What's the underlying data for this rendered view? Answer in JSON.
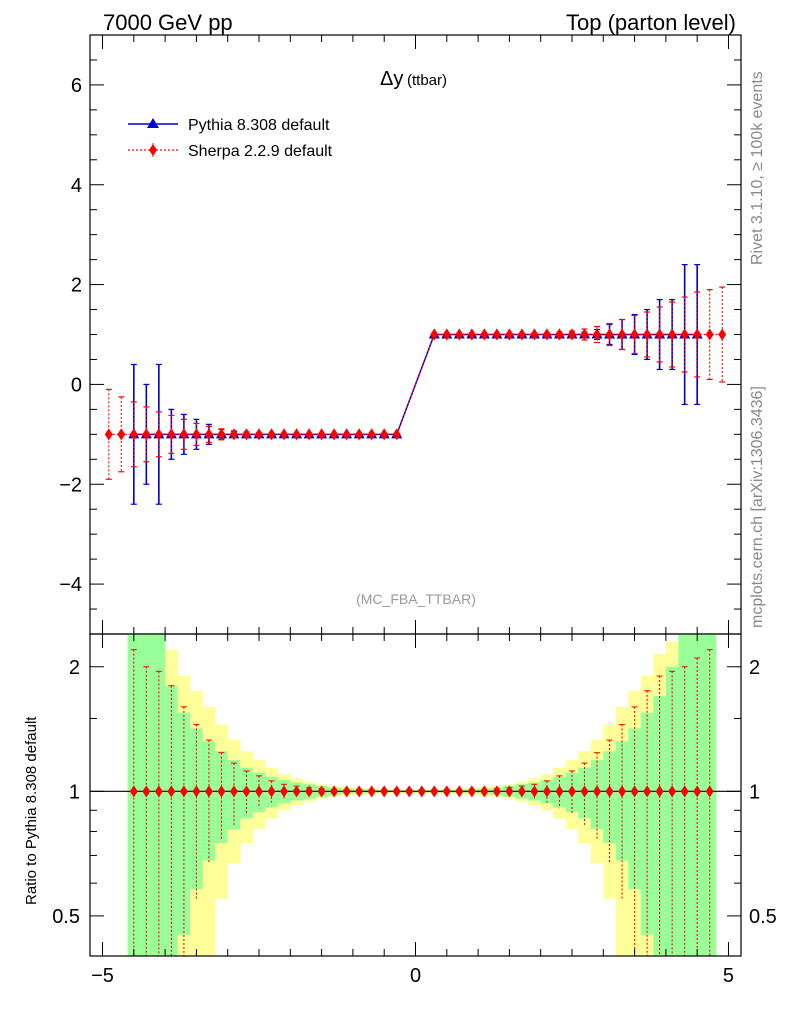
{
  "header": {
    "energy_label": "7000 GeV pp",
    "process_label": "Top (parton level)"
  },
  "side_text": {
    "rivet_version": "Rivet 3.1.10, ≥ 100k events",
    "site_ref": "mcplots.cern.ch [arXiv:1306.3436]"
  },
  "chart_data": [
    {
      "type": "line",
      "title": "Δy",
      "title_suffix": "(ttbar)",
      "watermark": "(MC_FBA_TTBAR)",
      "xlim": [
        -5.2,
        5.2
      ],
      "ylim": [
        -5.0,
        7.0
      ],
      "xticks": [
        -5,
        0,
        5
      ],
      "yticks": [
        -4,
        -2,
        0,
        2,
        4,
        6
      ],
      "legend_position": "top-left",
      "x": [
        -4.9,
        -4.7,
        -4.5,
        -4.3,
        -4.1,
        -3.9,
        -3.7,
        -3.5,
        -3.3,
        -3.1,
        -2.9,
        -2.7,
        -2.5,
        -2.3,
        -2.1,
        -1.9,
        -1.7,
        -1.5,
        -1.3,
        -1.1,
        -0.9,
        -0.7,
        -0.5,
        -0.3,
        0.3,
        0.5,
        0.7,
        0.9,
        1.1,
        1.3,
        1.5,
        1.7,
        1.9,
        2.1,
        2.3,
        2.5,
        2.7,
        2.9,
        3.1,
        3.3,
        3.5,
        3.7,
        3.9,
        4.1,
        4.3,
        4.5,
        4.7,
        4.9
      ],
      "series": [
        {
          "name": "Pythia 8.308 default",
          "color": "#0000cc",
          "line_style": "solid",
          "marker": "triangle",
          "x": [
            -4.5,
            -4.3,
            -4.1,
            -3.9,
            -3.7,
            -3.5,
            -3.3,
            -3.1,
            -2.9,
            -2.7,
            -2.5,
            -2.3,
            -2.1,
            -1.9,
            -1.7,
            -1.5,
            -1.3,
            -1.1,
            -0.9,
            -0.7,
            -0.5,
            -0.3,
            0.3,
            0.5,
            0.7,
            0.9,
            1.1,
            1.3,
            1.5,
            1.7,
            1.9,
            2.1,
            2.3,
            2.5,
            2.7,
            2.9,
            3.1,
            3.3,
            3.5,
            3.7,
            3.9,
            4.1,
            4.3,
            4.5
          ],
          "y": [
            -1,
            -1,
            -1,
            -1,
            -1,
            -1,
            -1,
            -1,
            -1,
            -1,
            -1,
            -1,
            -1,
            -1,
            -1,
            -1,
            -1,
            -1,
            -1,
            -1,
            -1,
            -1,
            1,
            1,
            1,
            1,
            1,
            1,
            1,
            1,
            1,
            1,
            1,
            1,
            1,
            1,
            1,
            1,
            1,
            1,
            1,
            1,
            1,
            1
          ],
          "yerr": [
            1.4,
            1.0,
            1.4,
            0.5,
            0.4,
            0.3,
            0.2,
            0.1,
            0.05,
            0.03,
            0.02,
            0.01,
            0.01,
            0.01,
            0.01,
            0.01,
            0.01,
            0.01,
            0.01,
            0.01,
            0.01,
            0.01,
            0.01,
            0.01,
            0.01,
            0.01,
            0.01,
            0.01,
            0.01,
            0.01,
            0.01,
            0.01,
            0.02,
            0.03,
            0.05,
            0.1,
            0.2,
            0.3,
            0.4,
            0.5,
            0.7,
            0.7,
            1.4,
            1.4
          ]
        },
        {
          "name": "Sherpa 2.2.9 default",
          "color": "#ff0000",
          "line_style": "dotted",
          "marker": "diamond",
          "x": [
            -4.9,
            -4.7,
            -4.5,
            -4.3,
            -4.1,
            -3.9,
            -3.7,
            -3.5,
            -3.3,
            -3.1,
            -2.9,
            -2.7,
            -2.5,
            -2.3,
            -2.1,
            -1.9,
            -1.7,
            -1.5,
            -1.3,
            -1.1,
            -0.9,
            -0.7,
            -0.5,
            -0.3,
            0.3,
            0.5,
            0.7,
            0.9,
            1.1,
            1.3,
            1.5,
            1.7,
            1.9,
            2.1,
            2.3,
            2.5,
            2.7,
            2.9,
            3.1,
            3.3,
            3.5,
            3.7,
            3.9,
            4.1,
            4.3,
            4.5,
            4.7,
            4.9
          ],
          "y": [
            -1,
            -1,
            -1,
            -1,
            -1,
            -1,
            -1,
            -1,
            -1,
            -1,
            -1,
            -1,
            -1,
            -1,
            -1,
            -1,
            -1,
            -1,
            -1,
            -1,
            -1,
            -1,
            -1,
            -1,
            1,
            1,
            1,
            1,
            1,
            1,
            1,
            1,
            1,
            1,
            1,
            1,
            1,
            1,
            1,
            1,
            1,
            1,
            1,
            1,
            1,
            1,
            1,
            1
          ],
          "yerr": [
            0.9,
            0.75,
            0.65,
            0.55,
            0.45,
            0.38,
            0.3,
            0.22,
            0.16,
            0.11,
            0.07,
            0.05,
            0.03,
            0.02,
            0.01,
            0.01,
            0.01,
            0.01,
            0.01,
            0.01,
            0.01,
            0.01,
            0.01,
            0.01,
            0.01,
            0.01,
            0.01,
            0.01,
            0.01,
            0.01,
            0.01,
            0.01,
            0.02,
            0.03,
            0.05,
            0.07,
            0.11,
            0.16,
            0.22,
            0.3,
            0.38,
            0.45,
            0.55,
            0.65,
            0.75,
            0.85,
            0.9,
            0.95
          ]
        }
      ]
    },
    {
      "type": "line",
      "ylabel": "Ratio to Pythia 8.308 default",
      "xlim": [
        -5.2,
        5.2
      ],
      "ylim": [
        0.4,
        2.4
      ],
      "log_y": true,
      "xticks": [
        -5,
        0,
        5
      ],
      "yticks": [
        0.5,
        1,
        2
      ],
      "reference_line": 1,
      "bands": {
        "edges": [
          -4.6,
          -4.4,
          -4.2,
          -4.0,
          -3.8,
          -3.6,
          -3.4,
          -3.2,
          -3.0,
          -2.8,
          -2.6,
          -2.4,
          -2.2,
          -2.0,
          -1.8,
          -1.6,
          -1.4,
          -1.2,
          -1.0,
          -0.8,
          -0.6,
          -0.4,
          -0.2,
          0.0,
          0.2,
          0.4,
          0.6,
          0.8,
          1.0,
          1.2,
          1.4,
          1.6,
          1.8,
          2.0,
          2.2,
          2.4,
          2.6,
          2.8,
          3.0,
          3.2,
          3.4,
          3.6,
          3.8,
          4.0,
          4.2,
          4.4,
          4.6,
          4.8
        ],
        "green_rel": [
          2.0,
          1.4,
          2.0,
          0.8,
          0.55,
          0.42,
          0.32,
          0.25,
          0.19,
          0.14,
          0.11,
          0.085,
          0.065,
          0.05,
          0.04,
          0.03,
          0.02,
          0.015,
          0.012,
          0.01,
          0.008,
          0.007,
          0.007,
          0.007,
          0.007,
          0.008,
          0.01,
          0.012,
          0.015,
          0.02,
          0.03,
          0.04,
          0.05,
          0.065,
          0.085,
          0.11,
          0.14,
          0.19,
          0.25,
          0.32,
          0.42,
          0.55,
          0.7,
          1.0,
          2.0,
          2.0,
          2.0
        ],
        "yellow_rel": [
          2.0,
          2.0,
          2.0,
          1.2,
          0.9,
          0.75,
          0.6,
          0.45,
          0.33,
          0.25,
          0.19,
          0.14,
          0.1,
          0.075,
          0.055,
          0.04,
          0.03,
          0.025,
          0.02,
          0.016,
          0.013,
          0.012,
          0.012,
          0.012,
          0.012,
          0.013,
          0.016,
          0.02,
          0.025,
          0.03,
          0.04,
          0.055,
          0.075,
          0.1,
          0.14,
          0.19,
          0.25,
          0.33,
          0.45,
          0.6,
          0.75,
          0.9,
          1.15,
          1.3,
          2.0,
          2.0,
          2.0
        ]
      },
      "series": [
        {
          "name": "Sherpa 2.2.9 default",
          "color": "#ff0000",
          "line_style": "dotted",
          "marker": "diamond",
          "x": [
            -4.5,
            -4.3,
            -4.1,
            -3.9,
            -3.7,
            -3.5,
            -3.3,
            -3.1,
            -2.9,
            -2.7,
            -2.5,
            -2.3,
            -2.1,
            -1.9,
            -1.7,
            -1.5,
            -1.3,
            -1.1,
            -0.9,
            -0.7,
            -0.5,
            -0.3,
            -0.1,
            0.1,
            0.3,
            0.5,
            0.7,
            0.9,
            1.1,
            1.3,
            1.5,
            1.7,
            1.9,
            2.1,
            2.3,
            2.5,
            2.7,
            2.9,
            3.1,
            3.3,
            3.5,
            3.7,
            3.9,
            4.1,
            4.3,
            4.5,
            4.7
          ],
          "y": [
            1,
            1,
            1,
            1,
            1,
            1,
            1,
            1,
            1,
            1,
            1,
            1,
            1,
            1,
            1,
            1,
            1,
            1,
            1,
            1,
            1,
            1,
            1,
            1,
            1,
            1,
            1,
            1,
            1,
            1,
            1,
            1,
            1,
            1,
            1,
            1,
            1,
            1,
            1,
            1,
            1,
            1,
            1,
            1,
            1,
            1,
            1
          ],
          "yerr": [
            1.2,
            1.0,
            0.95,
            0.8,
            0.6,
            0.45,
            0.33,
            0.24,
            0.17,
            0.12,
            0.09,
            0.06,
            0.04,
            0.03,
            0.02,
            0.015,
            0.01,
            0.01,
            0.01,
            0.01,
            0.01,
            0.01,
            0.01,
            0.01,
            0.01,
            0.01,
            0.01,
            0.01,
            0.01,
            0.015,
            0.02,
            0.03,
            0.04,
            0.06,
            0.09,
            0.12,
            0.17,
            0.24,
            0.33,
            0.45,
            0.6,
            0.75,
            0.9,
            0.95,
            1.0,
            1.1,
            1.2
          ]
        }
      ]
    }
  ]
}
